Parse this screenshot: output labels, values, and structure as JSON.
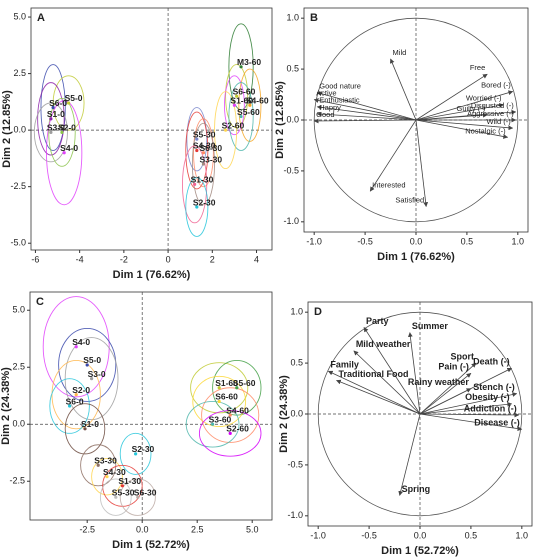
{
  "chart_data": [
    {
      "type": "scatter",
      "panel": "A",
      "xlabel": "Dim 1 (76.62%)",
      "ylabel": "Dim 2 (12.85%)",
      "xlim": [
        -6.2,
        4.7
      ],
      "ylim": [
        -5.3,
        5.4
      ],
      "xticks": [
        -6,
        -4,
        -2,
        0,
        2,
        4
      ],
      "yticks": [
        {
          "value": 5,
          "label": "5.0"
        },
        2.5,
        {
          "value": 0,
          "label": "0.0"
        },
        -2.5,
        {
          "value": -5,
          "label": "-5.0"
        }
      ],
      "points": [
        {
          "label": "S6-0",
          "x": -5.2,
          "y": 1.0,
          "rx": 0.55,
          "ry": 1.9,
          "color": "#3949ab"
        },
        {
          "label": "S5-0",
          "x": -4.5,
          "y": 1.2,
          "rx": 0.7,
          "ry": 1.2,
          "color": "#c0ca33"
        },
        {
          "label": "S1-0",
          "x": -5.3,
          "y": 0.5,
          "rx": 0.6,
          "ry": 1.6,
          "color": "#8e24aa"
        },
        {
          "label": "S3-0",
          "x": -5.3,
          "y": -0.1,
          "rx": 0.75,
          "ry": 1.3,
          "color": "#9e9e9e"
        },
        {
          "label": "S2-0",
          "x": -4.8,
          "y": -0.1,
          "rx": 0.6,
          "ry": 1.5,
          "color": "#8bc34a"
        },
        {
          "label": "S4-0",
          "x": -4.7,
          "y": -1.0,
          "rx": 0.8,
          "ry": 2.3,
          "color": "#e040fb"
        },
        {
          "label": "M3-60",
          "x": 3.3,
          "y": 2.8,
          "rx": 0.55,
          "ry": 1.9,
          "color": "#2e7d32"
        },
        {
          "label": "S6-60",
          "x": 3.1,
          "y": 1.5,
          "rx": 0.5,
          "ry": 1.4,
          "color": "#c0ca33"
        },
        {
          "label": "S1-60",
          "x": 3.0,
          "y": 1.1,
          "rx": 0.45,
          "ry": 1.3,
          "color": "#e040fb"
        },
        {
          "label": "S4-60",
          "x": 3.7,
          "y": 1.1,
          "rx": 0.5,
          "ry": 1.6,
          "color": "#f5a623"
        },
        {
          "label": "S5-60",
          "x": 3.3,
          "y": 0.6,
          "rx": 0.55,
          "ry": 1.5,
          "color": "#4db6ac"
        },
        {
          "label": "S2-60",
          "x": 2.6,
          "y": 0.0,
          "rx": 0.5,
          "ry": 1.7,
          "color": "#ffd54f"
        },
        {
          "label": "S5-30",
          "x": 1.3,
          "y": -0.4,
          "rx": 0.45,
          "ry": 1.4,
          "color": "#7986cb"
        },
        {
          "label": "S4-30",
          "x": 1.3,
          "y": -0.9,
          "rx": 0.5,
          "ry": 1.7,
          "color": "#e53935"
        },
        {
          "label": "S6-30",
          "x": 1.6,
          "y": -1.0,
          "rx": 0.45,
          "ry": 1.5,
          "color": "#ff8a65"
        },
        {
          "label": "S3-30",
          "x": 1.6,
          "y": -1.5,
          "rx": 0.5,
          "ry": 1.8,
          "color": "#a1887f"
        },
        {
          "label": "S1-30",
          "x": 1.2,
          "y": -2.4,
          "rx": 0.55,
          "ry": 1.7,
          "color": "#f06292"
        },
        {
          "label": "S2-30",
          "x": 1.3,
          "y": -3.4,
          "rx": 0.5,
          "ry": 1.3,
          "color": "#26c6da"
        }
      ]
    },
    {
      "type": "biplot",
      "panel": "B",
      "xlabel": "Dim 1 (76.62%)",
      "ylabel": "Dim 2 (12.85%)",
      "xlim": [
        -1.1,
        1.1
      ],
      "ylim": [
        -1.1,
        1.1
      ],
      "xticks": [
        {
          "value": -1,
          "label": "-1.0"
        },
        -0.5,
        {
          "value": 0,
          "label": "0.0"
        },
        0.5,
        {
          "value": 1,
          "label": "1.0"
        }
      ],
      "yticks": [
        {
          "value": 1,
          "label": "1.0"
        },
        0.5,
        {
          "value": 0,
          "label": "0.0"
        },
        -0.5,
        {
          "value": -1,
          "label": "-1.0"
        }
      ],
      "variables": [
        {
          "label": "Mild",
          "x": -0.25,
          "y": 0.6
        },
        {
          "label": "Free",
          "x": 0.7,
          "y": 0.45
        },
        {
          "label": "Bored (-)",
          "x": 0.95,
          "y": 0.28
        },
        {
          "label": "Good nature",
          "x": -0.97,
          "y": 0.27
        },
        {
          "label": "Active",
          "x": -1.0,
          "y": 0.2
        },
        {
          "label": "Enthusiastic",
          "x": -0.97,
          "y": 0.13
        },
        {
          "label": "Happy",
          "x": -0.97,
          "y": 0.06
        },
        {
          "label": "Good",
          "x": -1.0,
          "y": -0.01
        },
        {
          "label": "Worried (-)",
          "x": 0.86,
          "y": 0.15
        },
        {
          "label": "Disgusted (-)",
          "x": 0.98,
          "y": 0.08
        },
        {
          "label": "Guilty (-)",
          "x": 0.7,
          "y": 0.05
        },
        {
          "label": "Aggressive (-)",
          "x": 0.98,
          "y": 0.0
        },
        {
          "label": "Wild (-)",
          "x": 0.95,
          "y": -0.08
        },
        {
          "label": "Nostalgic (-)",
          "x": 0.9,
          "y": -0.17
        },
        {
          "label": "Interested",
          "x": -0.45,
          "y": -0.7
        },
        {
          "label": "Satisfied",
          "x": 0.1,
          "y": -0.85
        }
      ]
    },
    {
      "type": "scatter",
      "panel": "C",
      "xlabel": "Dim 1 (52.72%)",
      "ylabel": "Dim 2 (24.38%)",
      "xlim": [
        -5.1,
        5.9
      ],
      "ylim": [
        -4.2,
        5.8
      ],
      "xticks": [
        -2.5,
        {
          "value": 0,
          "label": "0.0"
        },
        2.5,
        {
          "value": 5,
          "label": "5.0"
        }
      ],
      "yticks": [
        {
          "value": 5,
          "label": "5.0"
        },
        2.5,
        {
          "value": 0,
          "label": "0.0"
        },
        -2.5
      ],
      "points": [
        {
          "label": "S4-0",
          "x": -3.0,
          "y": 3.4,
          "rx": 1.5,
          "ry": 2.2,
          "color": "#e040fb"
        },
        {
          "label": "S5-0",
          "x": -2.5,
          "y": 2.6,
          "rx": 1.3,
          "ry": 1.6,
          "color": "#3949ab"
        },
        {
          "label": "S3-0",
          "x": -2.3,
          "y": 2.0,
          "rx": 1.2,
          "ry": 1.8,
          "color": "#9e9e9e"
        },
        {
          "label": "S2-0",
          "x": -3.0,
          "y": 1.3,
          "rx": 1.1,
          "ry": 1.5,
          "color": "#ffb74d"
        },
        {
          "label": "S6-0",
          "x": -3.3,
          "y": 0.8,
          "rx": 0.9,
          "ry": 1.2,
          "color": "#26c6da"
        },
        {
          "label": "S1-0",
          "x": -2.6,
          "y": -0.2,
          "rx": 0.9,
          "ry": 1.1,
          "color": "#6d4c41"
        },
        {
          "label": "S1-60",
          "x": 3.5,
          "y": 1.6,
          "rx": 1.3,
          "ry": 1.1,
          "color": "#c0ca33"
        },
        {
          "label": "S5-60",
          "x": 4.3,
          "y": 1.6,
          "rx": 1.1,
          "ry": 1.2,
          "color": "#43a047"
        },
        {
          "label": "S6-60",
          "x": 3.5,
          "y": 1.0,
          "rx": 1.2,
          "ry": 1.1,
          "color": "#fdd835"
        },
        {
          "label": "S4-60",
          "x": 4.0,
          "y": 0.4,
          "rx": 1.3,
          "ry": 1.2,
          "color": "#ff8a65"
        },
        {
          "label": "S3-60",
          "x": 3.2,
          "y": 0.0,
          "rx": 1.2,
          "ry": 1.0,
          "color": "#4db6ac"
        },
        {
          "label": "S2-60",
          "x": 4.0,
          "y": -0.4,
          "rx": 1.4,
          "ry": 1.0,
          "color": "#d500f9"
        },
        {
          "label": "S2-30",
          "x": -0.3,
          "y": -1.3,
          "rx": 0.7,
          "ry": 0.9,
          "color": "#26c6da"
        },
        {
          "label": "S3-30",
          "x": -2.0,
          "y": -1.8,
          "rx": 0.8,
          "ry": 0.9,
          "color": "#8d6e63"
        },
        {
          "label": "S4-30",
          "x": -1.6,
          "y": -2.3,
          "rx": 0.7,
          "ry": 0.8,
          "color": "#ffd54f"
        },
        {
          "label": "S1-30",
          "x": -0.9,
          "y": -2.7,
          "rx": 0.9,
          "ry": 0.9,
          "color": "#e53935"
        },
        {
          "label": "S5-30",
          "x": -1.2,
          "y": -3.2,
          "rx": 0.7,
          "ry": 0.8,
          "color": "#bdbdbd"
        },
        {
          "label": "S6-30",
          "x": -0.2,
          "y": -3.2,
          "rx": 0.8,
          "ry": 0.8,
          "color": "#bcaaa4"
        }
      ]
    },
    {
      "type": "biplot",
      "panel": "D",
      "xlabel": "Dim 1 (52.72%)",
      "ylabel": "Dim 2 (24.38%)",
      "xlim": [
        -1.1,
        1.1
      ],
      "ylim": [
        -1.1,
        1.1
      ],
      "xticks": [
        {
          "value": -1,
          "label": "-1.0"
        },
        -0.5,
        {
          "value": 0,
          "label": "0.0"
        },
        0.5,
        {
          "value": 1,
          "label": "1.0"
        }
      ],
      "yticks": [
        {
          "value": 1,
          "label": "1.0"
        },
        0.5,
        {
          "value": 0,
          "label": "0.0"
        },
        -0.5,
        {
          "value": -1,
          "label": "-1.0"
        }
      ],
      "variables": [
        {
          "label": "Party",
          "x": -0.55,
          "y": 0.85
        },
        {
          "label": "Summer",
          "x": -0.1,
          "y": 0.8
        },
        {
          "label": "Mild weather",
          "x": -0.65,
          "y": 0.62
        },
        {
          "label": "Family",
          "x": -0.9,
          "y": 0.42
        },
        {
          "label": "Traditional Food",
          "x": -0.82,
          "y": 0.33
        },
        {
          "label": "Sport",
          "x": 0.55,
          "y": 0.5
        },
        {
          "label": "Pain (-)",
          "x": 0.5,
          "y": 0.4
        },
        {
          "label": "Death (-)",
          "x": 0.9,
          "y": 0.45
        },
        {
          "label": "Rainy weather",
          "x": 0.5,
          "y": 0.25
        },
        {
          "label": "Stench (-)",
          "x": 0.95,
          "y": 0.2
        },
        {
          "label": "Obesity (-)",
          "x": 0.9,
          "y": 0.1
        },
        {
          "label": "Addiction (-)",
          "x": 0.97,
          "y": -0.01
        },
        {
          "label": "Disease (-)",
          "x": 1.0,
          "y": -0.15
        },
        {
          "label": "Spring",
          "x": -0.2,
          "y": -0.8
        }
      ]
    }
  ]
}
